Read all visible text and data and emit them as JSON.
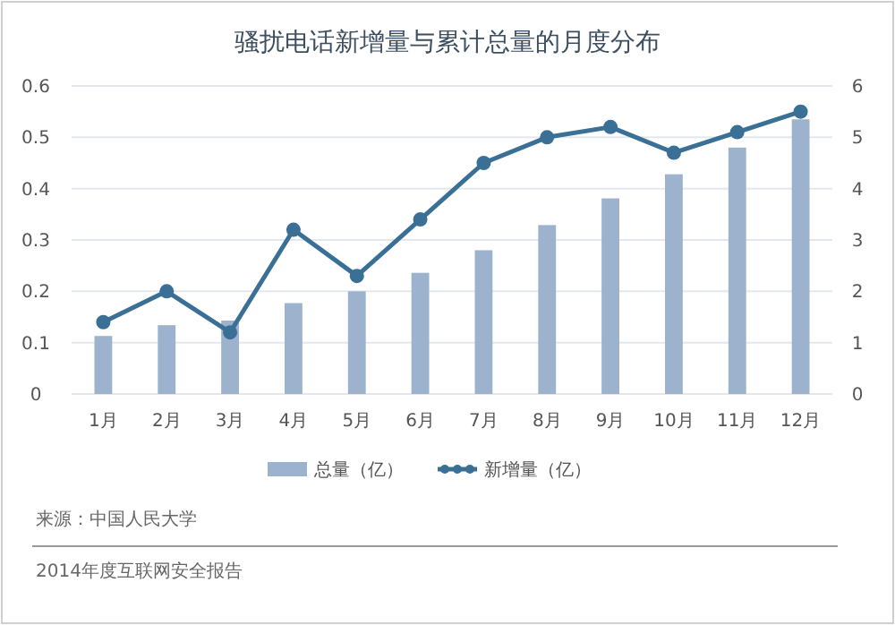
{
  "chart_data": {
    "type": "bar",
    "title": "骚扰电话新增量与累计总量的月度分布",
    "categories": [
      "1月",
      "2月",
      "3月",
      "4月",
      "5月",
      "6月",
      "7月",
      "8月",
      "9月",
      "10月",
      "11月",
      "12月"
    ],
    "series": [
      {
        "name": "总量（亿）",
        "axis": "y2",
        "color": "#9db3cd",
        "values": [
          1.13,
          1.34,
          1.43,
          1.77,
          2.0,
          2.36,
          2.8,
          3.29,
          3.81,
          4.28,
          4.8,
          5.35
        ]
      },
      {
        "name": "新增量（亿）",
        "type": "line",
        "color": "#3a6f96",
        "marker": "circle",
        "values": [
          0.14,
          0.2,
          0.12,
          0.32,
          0.23,
          0.34,
          0.45,
          0.5,
          0.52,
          0.47,
          0.51,
          0.55
        ]
      }
    ],
    "ylim": [
      0,
      0.6
    ],
    "yticks": [
      0,
      {
        "value": 0.1,
        "label": "0.1"
      },
      {
        "value": 0.2,
        "label": "0.2"
      },
      {
        "value": 0.3,
        "label": "0.3"
      },
      {
        "value": 0.4,
        "label": "0.4"
      },
      {
        "value": 0.5,
        "label": "0.5"
      },
      {
        "value": 0.6,
        "label": "0.6"
      }
    ],
    "y2lim": [
      0,
      6
    ],
    "y2ticks": [
      0,
      1,
      2,
      3,
      4,
      5,
      6
    ],
    "grid": "y",
    "legend": "bottom",
    "annotations": [
      "来源：中国人民大学",
      "2014年度互联网安全报告"
    ]
  }
}
